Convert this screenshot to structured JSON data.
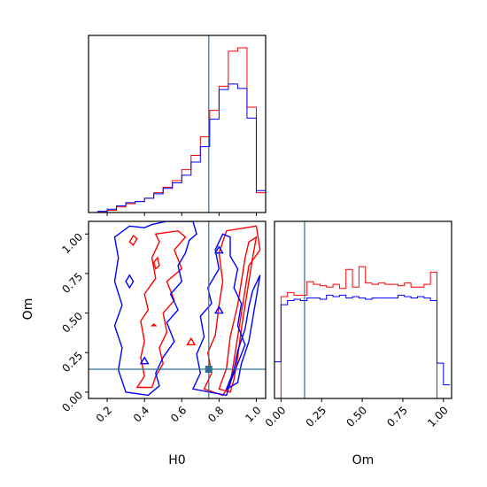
{
  "chart_data": [
    {
      "panel": "H0 marginal",
      "type": "step-histogram",
      "xlim": [
        0.1,
        1.05
      ],
      "bins": [
        0.1,
        0.15,
        0.2,
        0.25,
        0.3,
        0.35,
        0.4,
        0.45,
        0.5,
        0.55,
        0.6,
        0.65,
        0.7,
        0.75,
        0.8,
        0.85,
        0.9,
        0.95,
        1.0,
        1.05
      ],
      "truth": 0.745,
      "series": [
        {
          "color": "#ff0000",
          "values": [
            0,
            1,
            2,
            5,
            8,
            10,
            13,
            18,
            23,
            29,
            39,
            52,
            69,
            93,
            115,
            147,
            150,
            96,
            18
          ]
        },
        {
          "color": "#0000ff",
          "values": [
            0,
            1,
            3,
            6,
            9,
            10,
            13,
            17,
            22,
            27,
            34,
            46,
            60,
            85,
            112,
            117,
            113,
            86,
            20
          ]
        }
      ],
      "truth_color": "#2f6f8f"
    },
    {
      "panel": "H0 vs Om",
      "type": "contour",
      "xlabel": "H0",
      "ylabel": "Om",
      "xlim": [
        0.1,
        1.05
      ],
      "ylim": [
        -0.04,
        1.08
      ],
      "xticks": [
        "0.2",
        "0.4",
        "0.6",
        "0.8",
        "1.0"
      ],
      "yticks": [
        "0.00",
        "0.25",
        "0.50",
        "0.75",
        "1.00"
      ],
      "xtick_values": [
        0.2,
        0.4,
        0.6,
        0.8,
        1.0
      ],
      "ytick_values": [
        0.0,
        0.25,
        0.5,
        0.75,
        1.0
      ],
      "truth": [
        0.745,
        0.145
      ],
      "series": [
        {
          "color": "#ff0000",
          "contours": [
            [
              [
                0.36,
                0.03
              ],
              [
                0.4,
                0.1
              ],
              [
                0.38,
                0.22
              ],
              [
                0.4,
                0.32
              ],
              [
                0.38,
                0.45
              ],
              [
                0.42,
                0.52
              ],
              [
                0.4,
                0.62
              ],
              [
                0.46,
                0.72
              ],
              [
                0.44,
                0.85
              ],
              [
                0.48,
                0.95
              ],
              [
                0.46,
                1.0
              ],
              [
                0.58,
                1.02
              ],
              [
                0.62,
                0.98
              ],
              [
                0.56,
                0.9
              ],
              [
                0.6,
                0.78
              ],
              [
                0.52,
                0.7
              ],
              [
                0.56,
                0.58
              ],
              [
                0.5,
                0.5
              ],
              [
                0.52,
                0.38
              ],
              [
                0.48,
                0.28
              ],
              [
                0.5,
                0.18
              ],
              [
                0.46,
                0.1
              ],
              [
                0.44,
                0.03
              ]
            ],
            [
              [
                0.72,
                0.02
              ],
              [
                0.76,
                0.12
              ],
              [
                0.74,
                0.25
              ],
              [
                0.78,
                0.36
              ],
              [
                0.8,
                0.55
              ],
              [
                0.82,
                0.7
              ],
              [
                0.8,
                0.88
              ],
              [
                0.84,
                1.02
              ],
              [
                1.0,
                1.05
              ],
              [
                1.02,
                0.9
              ],
              [
                0.96,
                0.8
              ],
              [
                0.94,
                0.65
              ],
              [
                0.92,
                0.5
              ],
              [
                0.9,
                0.35
              ],
              [
                0.88,
                0.2
              ],
              [
                0.86,
                0.05
              ],
              [
                0.82,
                -0.02
              ]
            ],
            [
              [
                0.8,
                0.02
              ],
              [
                0.84,
                0.15
              ],
              [
                0.86,
                0.35
              ],
              [
                0.9,
                0.55
              ],
              [
                0.92,
                0.7
              ],
              [
                0.94,
                0.85
              ],
              [
                0.96,
                0.95
              ],
              [
                1.0,
                0.98
              ],
              [
                0.98,
                0.85
              ],
              [
                0.96,
                0.7
              ],
              [
                0.94,
                0.55
              ],
              [
                0.92,
                0.4
              ],
              [
                0.9,
                0.22
              ],
              [
                0.88,
                0.08
              ],
              [
                0.86,
                0.0
              ]
            ],
            [
              [
                0.45,
                0.82
              ],
              [
                0.47,
                0.85
              ],
              [
                0.48,
                0.8
              ],
              [
                0.46,
                0.78
              ]
            ],
            [
              [
                0.32,
                0.95
              ],
              [
                0.34,
                0.99
              ],
              [
                0.36,
                0.97
              ],
              [
                0.34,
                0.93
              ]
            ],
            [
              [
                0.63,
                0.3
              ],
              [
                0.65,
                0.34
              ],
              [
                0.67,
                0.3
              ]
            ],
            [
              [
                0.44,
                0.42
              ],
              [
                0.45,
                0.43
              ],
              [
                0.46,
                0.42
              ]
            ]
          ]
        },
        {
          "color": "#0000ff",
          "contours": [
            [
              [
                0.3,
                0.0
              ],
              [
                0.26,
                0.14
              ],
              [
                0.28,
                0.28
              ],
              [
                0.24,
                0.42
              ],
              [
                0.28,
                0.55
              ],
              [
                0.24,
                0.7
              ],
              [
                0.26,
                0.85
              ],
              [
                0.24,
                0.98
              ],
              [
                0.32,
                1.05
              ],
              [
                0.4,
                1.04
              ],
              [
                0.44,
                1.06
              ],
              [
                0.52,
                1.08
              ],
              [
                0.6,
                1.08
              ],
              [
                0.66,
                1.08
              ],
              [
                0.68,
                1.0
              ],
              [
                0.64,
                0.96
              ],
              [
                0.62,
                0.88
              ],
              [
                0.58,
                0.8
              ],
              [
                0.6,
                0.7
              ],
              [
                0.54,
                0.62
              ],
              [
                0.58,
                0.52
              ],
              [
                0.52,
                0.44
              ],
              [
                0.56,
                0.32
              ],
              [
                0.5,
                0.22
              ],
              [
                0.46,
                0.12
              ],
              [
                0.48,
                0.04
              ],
              [
                0.42,
                -0.02
              ]
            ],
            [
              [
                0.66,
                0.02
              ],
              [
                0.7,
                0.12
              ],
              [
                0.68,
                0.24
              ],
              [
                0.72,
                0.35
              ],
              [
                0.7,
                0.48
              ],
              [
                0.76,
                0.56
              ],
              [
                0.74,
                0.66
              ],
              [
                0.8,
                0.78
              ],
              [
                0.78,
                0.9
              ],
              [
                0.82,
                1.0
              ],
              [
                0.86,
                0.98
              ],
              [
                0.86,
                0.86
              ],
              [
                0.9,
                0.78
              ],
              [
                0.88,
                0.66
              ],
              [
                0.92,
                0.56
              ],
              [
                0.9,
                0.42
              ],
              [
                0.94,
                0.3
              ],
              [
                0.9,
                0.18
              ],
              [
                0.86,
                0.06
              ],
              [
                0.84,
                -0.02
              ]
            ],
            [
              [
                0.84,
                0.02
              ],
              [
                0.88,
                0.14
              ],
              [
                0.9,
                0.26
              ],
              [
                0.94,
                0.4
              ],
              [
                0.96,
                0.54
              ],
              [
                0.98,
                0.64
              ],
              [
                1.02,
                0.74
              ],
              [
                1.0,
                0.6
              ],
              [
                0.98,
                0.46
              ],
              [
                0.96,
                0.32
              ],
              [
                0.92,
                0.18
              ],
              [
                0.9,
                0.06
              ]
            ],
            [
              [
                0.38,
                0.18
              ],
              [
                0.4,
                0.22
              ],
              [
                0.42,
                0.18
              ]
            ],
            [
              [
                0.3,
                0.7
              ],
              [
                0.32,
                0.74
              ],
              [
                0.34,
                0.7
              ],
              [
                0.32,
                0.66
              ]
            ],
            [
              [
                0.78,
                0.5
              ],
              [
                0.8,
                0.54
              ],
              [
                0.82,
                0.5
              ]
            ],
            [
              [
                0.78,
                0.88
              ],
              [
                0.8,
                0.92
              ],
              [
                0.82,
                0.88
              ]
            ]
          ]
        }
      ],
      "truth_color": "#2f6f8f"
    },
    {
      "panel": "Om marginal",
      "type": "step-histogram",
      "xlabel": "Om",
      "xlim": [
        -0.04,
        1.05
      ],
      "xticks": [
        "0.00",
        "0.25",
        "0.50",
        "0.75",
        "1.00"
      ],
      "xtick_values": [
        0.0,
        0.25,
        0.5,
        0.75,
        1.0
      ],
      "bins": [
        -0.04,
        0.0,
        0.04,
        0.08,
        0.12,
        0.16,
        0.2,
        0.24,
        0.28,
        0.32,
        0.36,
        0.4,
        0.44,
        0.48,
        0.52,
        0.56,
        0.6,
        0.64,
        0.68,
        0.72,
        0.76,
        0.8,
        0.84,
        0.88,
        0.92,
        0.96,
        1.0,
        1.04
      ],
      "truth": 0.145,
      "series": [
        {
          "color": "#ff0000",
          "values": [
            0,
            75,
            78,
            76,
            76,
            86,
            84,
            83,
            82,
            84,
            81,
            95,
            82,
            97,
            85,
            84,
            85,
            84,
            84,
            83,
            85,
            82,
            82,
            84,
            93,
            0,
            0
          ]
        },
        {
          "color": "#0000ff",
          "values": [
            27,
            69,
            72,
            73,
            72,
            74,
            74,
            73,
            76,
            75,
            76,
            74,
            75,
            74,
            73,
            74,
            74,
            74,
            74,
            76,
            75,
            74,
            75,
            74,
            72,
            26,
            10
          ]
        }
      ],
      "truth_color": "#2f6f8f"
    }
  ]
}
